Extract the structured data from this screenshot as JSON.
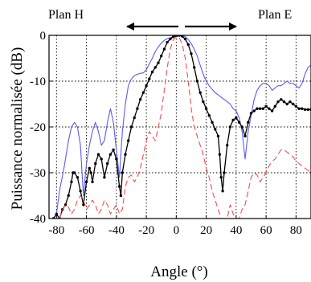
{
  "chart_data": {
    "type": "line",
    "xlabel": "Angle (°)",
    "ylabel": "Puissance normalisée (dB)",
    "xlim": [
      -85,
      90
    ],
    "ylim": [
      -40,
      0
    ],
    "xticks": [
      -80,
      -60,
      -40,
      -20,
      0,
      20,
      40,
      60,
      80
    ],
    "yticks": [
      0,
      -10,
      -20,
      -30,
      -40
    ],
    "grid": true,
    "annotations": {
      "left_label": "Plan H",
      "right_label": "Plan E"
    },
    "colors": {
      "blue": "#5b5bf2",
      "black": "#000000",
      "red": "#ff4a4a"
    },
    "series": [
      {
        "color": "blue",
        "style": "solid",
        "x": [
          -80,
          -78,
          -75,
          -72,
          -70,
          -68,
          -66,
          -64,
          -62,
          -60,
          -58,
          -56,
          -54,
          -52,
          -50,
          -48,
          -46,
          -44,
          -42,
          -40,
          -38,
          -37,
          -36,
          -34,
          -32,
          -30,
          -28,
          -26,
          -24,
          -22,
          -20,
          -18,
          -16,
          -14,
          -12,
          -10,
          -8,
          -6,
          -4,
          -2,
          0,
          2,
          4,
          6,
          8,
          10,
          12,
          14,
          16,
          18,
          20,
          22,
          24,
          26,
          28,
          30,
          32,
          34,
          36,
          38,
          40,
          42,
          44,
          46,
          48,
          50,
          52,
          54,
          56,
          58,
          60,
          62,
          64,
          66,
          68,
          70,
          72,
          74,
          76,
          78,
          80,
          82,
          84,
          86,
          88,
          90
        ],
        "y": [
          -39,
          -34,
          -29,
          -23,
          -20,
          -19,
          -20,
          -24,
          -35,
          -28,
          -24,
          -21,
          -19,
          -21,
          -24,
          -23,
          -19,
          -16,
          -19,
          -25,
          -31,
          -26,
          -21,
          -15,
          -11,
          -9.5,
          -8.8,
          -8.5,
          -8.3,
          -8.2,
          -7.5,
          -6.2,
          -5,
          -3.5,
          -2.5,
          -1.7,
          -1.1,
          -0.7,
          -0.5,
          -0.3,
          -0.2,
          -0.1,
          0,
          -0.3,
          -0.9,
          -1.8,
          -3,
          -4.5,
          -6.5,
          -8.5,
          -10,
          -11,
          -11.8,
          -12.5,
          -13,
          -13.5,
          -14,
          -14.5,
          -15,
          -16,
          -16.5,
          -18,
          -21,
          -27,
          -21,
          -17.5,
          -14,
          -12,
          -11,
          -10.5,
          -10.5,
          -11,
          -12,
          -11.5,
          -11,
          -11,
          -10.5,
          -10,
          -10.5,
          -10.5,
          -11,
          -11.5,
          -10.5,
          -8.5,
          -7,
          -6.5
        ]
      },
      {
        "color": "black",
        "style": "dotted-solid",
        "x": [
          -82,
          -80,
          -78,
          -76,
          -74,
          -72,
          -70,
          -69,
          -68,
          -66,
          -64,
          -62,
          -60,
          -58,
          -57,
          -56,
          -54,
          -52,
          -50,
          -48,
          -46,
          -44,
          -42,
          -40,
          -38,
          -37,
          -36,
          -34,
          -32,
          -30,
          -28,
          -26,
          -24,
          -22,
          -20,
          -18,
          -16,
          -14,
          -12,
          -10,
          -8,
          -6,
          -4,
          -2,
          0,
          2,
          4,
          6,
          8,
          10,
          12,
          14,
          16,
          18,
          20,
          22,
          24,
          26,
          28,
          29,
          30,
          31,
          32,
          34,
          36,
          38,
          40,
          42,
          44,
          46,
          48,
          50,
          52,
          54,
          56,
          58,
          60,
          62,
          64,
          66,
          68,
          70,
          72,
          74,
          76,
          78,
          80,
          82,
          84,
          86,
          88,
          90
        ],
        "y": [
          -40,
          -39,
          -40,
          -38,
          -37,
          -35,
          -32,
          -30,
          -30,
          -31,
          -34,
          -37,
          -32,
          -29,
          -30,
          -32,
          -28,
          -26,
          -27,
          -31,
          -28,
          -26,
          -25,
          -27,
          -33,
          -35,
          -30,
          -26,
          -23,
          -20,
          -18,
          -16,
          -14,
          -12.5,
          -11,
          -9.5,
          -8,
          -7,
          -6,
          -4.5,
          -3,
          -1.5,
          -0.8,
          -0.3,
          -0.1,
          0,
          -0.2,
          -0.8,
          -2,
          -4,
          -7,
          -10,
          -12.5,
          -14.5,
          -16,
          -17.5,
          -19,
          -20.5,
          -22,
          -26,
          -31,
          -34,
          -30,
          -24,
          -20,
          -18.5,
          -18,
          -19,
          -20,
          -22,
          -19,
          -17,
          -16.5,
          -16,
          -16,
          -16,
          -15.5,
          -16,
          -16.5,
          -15.5,
          -14.5,
          -14,
          -14.5,
          -15,
          -14.5,
          -15,
          -15.5,
          -16,
          -16,
          -16.2,
          -16.2,
          -16.2
        ]
      },
      {
        "color": "red",
        "style": "dashed",
        "x": [
          -78,
          -76,
          -74,
          -72,
          -70,
          -68,
          -66,
          -64,
          -62,
          -60,
          -58,
          -56,
          -54,
          -52,
          -50,
          -48,
          -46,
          -44,
          -42,
          -40,
          -38,
          -36,
          -34,
          -32,
          -30,
          -28,
          -26,
          -24,
          -22,
          -20,
          -18,
          -16,
          -14,
          -12,
          -10,
          -8,
          -6,
          -4,
          -2,
          0,
          2,
          4,
          6,
          8,
          10,
          12,
          14,
          16,
          18,
          20,
          22,
          24,
          26,
          28,
          30,
          32,
          34,
          36,
          38,
          40,
          42,
          44,
          46,
          48,
          50,
          52,
          54,
          56,
          58,
          60,
          62,
          64,
          66,
          68,
          70,
          72,
          74,
          76,
          78,
          80,
          82,
          84,
          86,
          88,
          90
        ],
        "y": [
          -40,
          -38,
          -37,
          -37.5,
          -39,
          -38,
          -36,
          -35,
          -36,
          -38,
          -37,
          -36,
          -37,
          -39,
          -38,
          -36,
          -37,
          -39,
          -38,
          -37,
          -39,
          -38,
          -33,
          -31,
          -30.5,
          -32,
          -31,
          -29,
          -26,
          -23,
          -21,
          -22,
          -23,
          -20,
          -17,
          -12,
          -7,
          -3,
          -1,
          -0.3,
          -0.5,
          -2,
          -5,
          -10,
          -16,
          -20,
          -22,
          -24,
          -26,
          -29,
          -31,
          -34,
          -36,
          -38,
          -40,
          -40,
          -40,
          -37,
          -39,
          -40,
          -40,
          -38,
          -37,
          -34,
          -31,
          -30,
          -30.5,
          -32,
          -31,
          -30,
          -28.5,
          -27.5,
          -27,
          -26,
          -25,
          -25,
          -25.5,
          -26,
          -26.5,
          -27.5,
          -28,
          -28.5,
          -29,
          -29.5,
          -30
        ]
      }
    ]
  }
}
